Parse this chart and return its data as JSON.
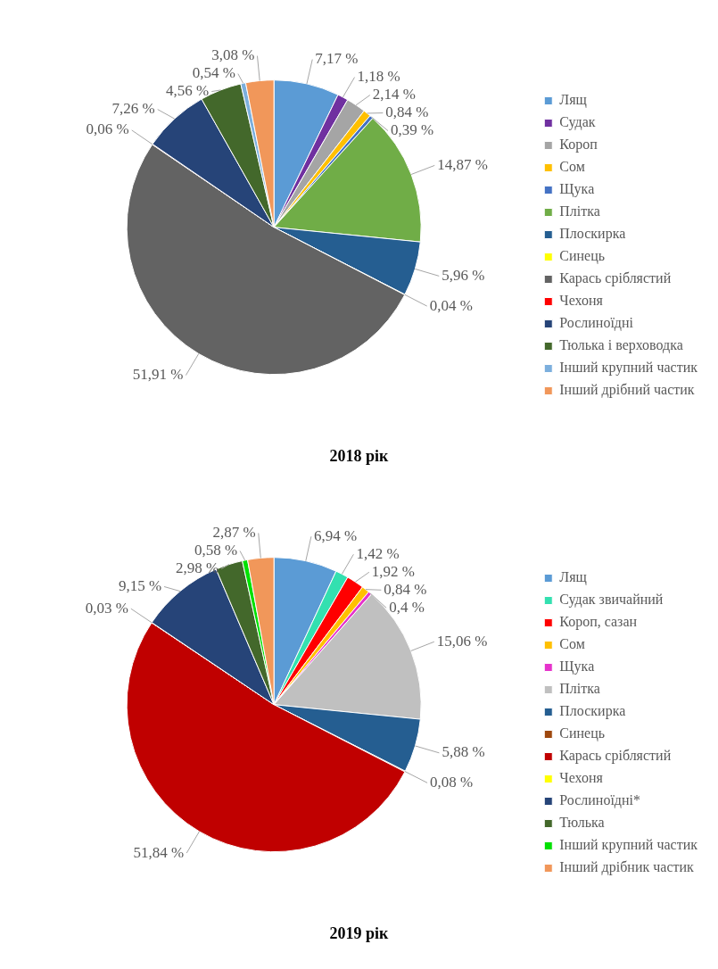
{
  "chart_data": [
    {
      "type": "pie",
      "title": "2018 рік",
      "legend": "right",
      "categories": [
        "Лящ",
        "Судак",
        "Короп",
        "Сом",
        "Щука",
        "Плітка",
        "Плоскирка",
        "Синець",
        "Карась сріблястий",
        "Чехоня",
        "Рослиноїдні",
        "Тюлька і верховодка",
        "Інший крупний частик",
        "Інший дрібний частик"
      ],
      "values": [
        7.17,
        1.18,
        2.14,
        0.84,
        0.39,
        14.87,
        5.96,
        0.04,
        51.91,
        0.06,
        7.26,
        4.56,
        0.54,
        3.08
      ],
      "value_labels": [
        "7,17 %",
        "1,18 %",
        "2,14 %",
        "0,84 %",
        "0,39 %",
        "14,87 %",
        "5,96 %",
        "0,04 %",
        "51,91 %",
        "0,06 %",
        "7,26 %",
        "4,56 %",
        "0,54 %",
        "3,08 %"
      ],
      "colors": [
        "#5b9bd5",
        "#7030a0",
        "#a5a5a5",
        "#ffc000",
        "#4472c4",
        "#70ad47",
        "#255e91",
        "#ffff00",
        "#636363",
        "#ff0000",
        "#264478",
        "#43682b",
        "#7cafdd",
        "#f1975a"
      ]
    },
    {
      "type": "pie",
      "title": "2019 рік",
      "legend": "right",
      "categories": [
        "Лящ",
        "Судак звичайний",
        "Короп, сазан",
        "Сом",
        "Щука",
        "Плітка",
        "Плоскирка",
        "Синець",
        "Карась сріблястий",
        "Чехоня",
        "Рослиноїдні*",
        "Тюлька",
        "Інший крупний частик",
        "Інший дрібник частик"
      ],
      "values": [
        6.94,
        1.42,
        1.92,
        0.84,
        0.4,
        15.06,
        5.88,
        0.08,
        51.84,
        0.03,
        9.15,
        2.98,
        0.58,
        2.87
      ],
      "value_labels": [
        "6,94 %",
        "1,42 %",
        "1,92 %",
        "0,84 %",
        "0,4 %",
        "15,06 %",
        "5,88 %",
        "0,08 %",
        "51,84 %",
        "0,03 %",
        "9,15 %",
        "2,98 %",
        "0,58 %",
        "2,87 %"
      ],
      "colors": [
        "#5b9bd5",
        "#33e0b0",
        "#ff0000",
        "#ffc000",
        "#e633cc",
        "#c0c0c0",
        "#255e91",
        "#9e480e",
        "#c00000",
        "#ffff00",
        "#264478",
        "#43682b",
        "#00e000",
        "#f1975a"
      ]
    }
  ]
}
